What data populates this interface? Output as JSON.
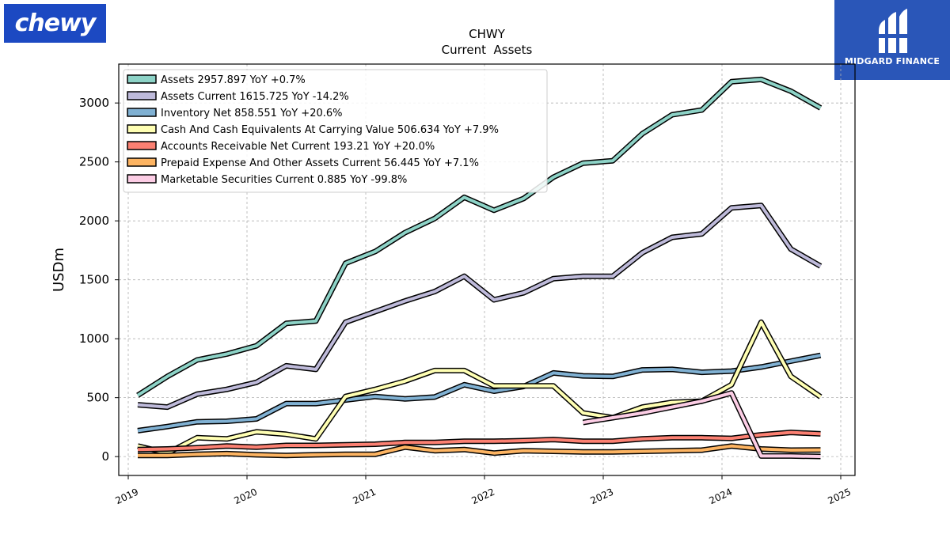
{
  "brand": {
    "left_logo": "chewy",
    "right_logo": "MIDGARD FINANCE"
  },
  "chart_data": {
    "type": "line",
    "title": "CHWY",
    "subtitle": "Current  Assets",
    "ylabel": "USDm",
    "xlabel": "",
    "xlim": [
      2018.92,
      2025.12
    ],
    "ylim": [
      -160,
      3330
    ],
    "x_ticks": [
      "2019",
      "2020",
      "2021",
      "2022",
      "2023",
      "2024",
      "2025"
    ],
    "y_ticks": [
      0,
      500,
      1000,
      1500,
      2000,
      2500,
      3000
    ],
    "grid": true,
    "legend_position": "top-left",
    "series": [
      {
        "name": "Assets  2957.897 YoY +0.7%",
        "color": "#8dd3c7",
        "points": [
          [
            2019.08,
            520
          ],
          [
            2019.33,
            680
          ],
          [
            2019.58,
            820
          ],
          [
            2019.83,
            870
          ],
          [
            2020.08,
            940
          ],
          [
            2020.33,
            1130
          ],
          [
            2020.58,
            1150
          ],
          [
            2020.83,
            1640
          ],
          [
            2021.08,
            1740
          ],
          [
            2021.33,
            1900
          ],
          [
            2021.58,
            2020
          ],
          [
            2021.83,
            2200
          ],
          [
            2022.08,
            2090
          ],
          [
            2022.33,
            2190
          ],
          [
            2022.58,
            2370
          ],
          [
            2022.83,
            2490
          ],
          [
            2023.08,
            2510
          ],
          [
            2023.33,
            2740
          ],
          [
            2023.58,
            2900
          ],
          [
            2023.83,
            2940
          ],
          [
            2024.08,
            3180
          ],
          [
            2024.33,
            3200
          ],
          [
            2024.58,
            3100
          ],
          [
            2024.83,
            2958
          ]
        ]
      },
      {
        "name": "Assets Current  1615.725 YoY -14.2%",
        "color": "#bebada",
        "points": [
          [
            2019.08,
            440
          ],
          [
            2019.33,
            420
          ],
          [
            2019.58,
            530
          ],
          [
            2019.83,
            570
          ],
          [
            2020.08,
            630
          ],
          [
            2020.33,
            770
          ],
          [
            2020.58,
            740
          ],
          [
            2020.83,
            1140
          ],
          [
            2021.08,
            1230
          ],
          [
            2021.33,
            1320
          ],
          [
            2021.58,
            1400
          ],
          [
            2021.83,
            1530
          ],
          [
            2022.08,
            1330
          ],
          [
            2022.33,
            1390
          ],
          [
            2022.58,
            1510
          ],
          [
            2022.83,
            1530
          ],
          [
            2023.08,
            1530
          ],
          [
            2023.33,
            1730
          ],
          [
            2023.58,
            1860
          ],
          [
            2023.83,
            1890
          ],
          [
            2024.08,
            2110
          ],
          [
            2024.33,
            2130
          ],
          [
            2024.58,
            1760
          ],
          [
            2024.83,
            1616
          ]
        ]
      },
      {
        "name": "Inventory Net  858.551 YoY +20.6%",
        "color": "#80b1d3",
        "points": [
          [
            2019.08,
            220
          ],
          [
            2019.33,
            255
          ],
          [
            2019.58,
            295
          ],
          [
            2019.83,
            300
          ],
          [
            2020.08,
            320
          ],
          [
            2020.33,
            450
          ],
          [
            2020.58,
            450
          ],
          [
            2020.83,
            480
          ],
          [
            2021.08,
            510
          ],
          [
            2021.33,
            490
          ],
          [
            2021.58,
            505
          ],
          [
            2021.83,
            610
          ],
          [
            2022.08,
            555
          ],
          [
            2022.33,
            595
          ],
          [
            2022.58,
            710
          ],
          [
            2022.83,
            685
          ],
          [
            2023.08,
            680
          ],
          [
            2023.33,
            735
          ],
          [
            2023.58,
            740
          ],
          [
            2023.83,
            715
          ],
          [
            2024.08,
            725
          ],
          [
            2024.33,
            760
          ],
          [
            2024.58,
            810
          ],
          [
            2024.83,
            859
          ]
        ]
      },
      {
        "name": "Cash And Cash Equivalents At Carrying Value  506.634 YoY +7.9%",
        "color": "#ffffb3",
        "points": [
          [
            2019.08,
            90
          ],
          [
            2019.33,
            30
          ],
          [
            2019.58,
            160
          ],
          [
            2019.83,
            150
          ],
          [
            2020.08,
            210
          ],
          [
            2020.33,
            190
          ],
          [
            2020.58,
            150
          ],
          [
            2020.83,
            510
          ],
          [
            2021.08,
            570
          ],
          [
            2021.33,
            640
          ],
          [
            2021.58,
            730
          ],
          [
            2021.83,
            730
          ],
          [
            2022.08,
            600
          ],
          [
            2022.33,
            600
          ],
          [
            2022.58,
            600
          ],
          [
            2022.83,
            370
          ],
          [
            2023.08,
            330
          ],
          [
            2023.33,
            420
          ],
          [
            2023.58,
            460
          ],
          [
            2023.83,
            470
          ],
          [
            2024.08,
            610
          ],
          [
            2024.33,
            1140
          ],
          [
            2024.58,
            680
          ],
          [
            2024.83,
            507
          ]
        ]
      },
      {
        "name": "Accounts Receivable Net Current  193.21 YoY +20.0%",
        "color": "#fb8072",
        "points": [
          [
            2019.08,
            60
          ],
          [
            2019.33,
            65
          ],
          [
            2019.58,
            75
          ],
          [
            2019.83,
            90
          ],
          [
            2020.08,
            80
          ],
          [
            2020.33,
            95
          ],
          [
            2020.58,
            95
          ],
          [
            2020.83,
            100
          ],
          [
            2021.08,
            105
          ],
          [
            2021.33,
            120
          ],
          [
            2021.58,
            120
          ],
          [
            2021.83,
            130
          ],
          [
            2022.08,
            130
          ],
          [
            2022.33,
            135
          ],
          [
            2022.58,
            145
          ],
          [
            2022.83,
            130
          ],
          [
            2023.08,
            130
          ],
          [
            2023.33,
            150
          ],
          [
            2023.58,
            160
          ],
          [
            2023.83,
            160
          ],
          [
            2024.08,
            155
          ],
          [
            2024.33,
            185
          ],
          [
            2024.58,
            205
          ],
          [
            2024.83,
            193
          ]
        ]
      },
      {
        "name": "Prepaid Expense And Other Assets Current  56.445 YoY +7.1%",
        "color": "#fdb462",
        "points": [
          [
            2019.08,
            10
          ],
          [
            2019.33,
            10
          ],
          [
            2019.58,
            20
          ],
          [
            2019.83,
            25
          ],
          [
            2020.08,
            15
          ],
          [
            2020.33,
            10
          ],
          [
            2020.58,
            15
          ],
          [
            2020.83,
            20
          ],
          [
            2021.08,
            20
          ],
          [
            2021.33,
            80
          ],
          [
            2021.58,
            50
          ],
          [
            2021.83,
            60
          ],
          [
            2022.08,
            30
          ],
          [
            2022.33,
            50
          ],
          [
            2022.58,
            45
          ],
          [
            2022.83,
            40
          ],
          [
            2023.08,
            40
          ],
          [
            2023.33,
            45
          ],
          [
            2023.58,
            50
          ],
          [
            2023.83,
            55
          ],
          [
            2024.08,
            90
          ],
          [
            2024.33,
            65
          ],
          [
            2024.58,
            55
          ],
          [
            2024.83,
            56
          ]
        ]
      },
      {
        "name": "Marketable Securities Current  0.885 YoY -99.8%",
        "color": "#fccde5",
        "points": [
          [
            2022.83,
            290
          ],
          [
            2023.33,
            370
          ],
          [
            2023.83,
            470
          ],
          [
            2024.08,
            540
          ],
          [
            2024.33,
            5
          ],
          [
            2024.58,
            5
          ],
          [
            2024.83,
            1
          ]
        ]
      }
    ]
  }
}
